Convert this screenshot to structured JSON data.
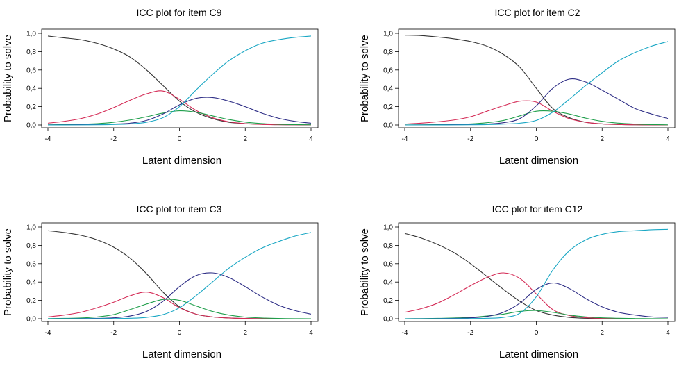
{
  "chart_data": [
    {
      "type": "line",
      "title": "ICC plot for item C9",
      "xlabel": "Latent dimension",
      "ylabel": "Probability to solve",
      "xlim": [
        -4,
        4
      ],
      "ylim": [
        0,
        1
      ],
      "xticks": [
        -4,
        -2,
        0,
        2,
        4
      ],
      "xtick_labels": [
        "-4",
        "-2",
        "0",
        "2",
        "4"
      ],
      "yticks": [
        0,
        0.2,
        0.4,
        0.6,
        0.8,
        1.0
      ],
      "ytick_labels": [
        "0,0",
        "0,2",
        "0,4",
        "0,6",
        "0,8",
        "1,0"
      ],
      "x": [
        -4,
        -3.5,
        -3,
        -2.5,
        -2,
        -1.5,
        -1,
        -0.5,
        0,
        0.5,
        1,
        1.5,
        2,
        2.5,
        3,
        3.5,
        4
      ],
      "series": [
        {
          "color": "#333333",
          "values": [
            0.97,
            0.95,
            0.93,
            0.89,
            0.83,
            0.74,
            0.6,
            0.43,
            0.26,
            0.14,
            0.07,
            0.03,
            0.015,
            0.007,
            0.003,
            0.002,
            0.001
          ]
        },
        {
          "color": "#d42a55",
          "values": [
            0.02,
            0.04,
            0.07,
            0.12,
            0.19,
            0.27,
            0.34,
            0.37,
            0.28,
            0.16,
            0.08,
            0.035,
            0.015,
            0.006,
            0.003,
            0.002,
            0.001
          ]
        },
        {
          "color": "#1e9e4a",
          "values": [
            0.002,
            0.004,
            0.008,
            0.015,
            0.03,
            0.055,
            0.09,
            0.13,
            0.155,
            0.14,
            0.1,
            0.06,
            0.032,
            0.016,
            0.008,
            0.004,
            0.002
          ]
        },
        {
          "color": "#2e2e86",
          "values": [
            0.001,
            0.002,
            0.003,
            0.005,
            0.01,
            0.02,
            0.05,
            0.12,
            0.22,
            0.29,
            0.3,
            0.26,
            0.2,
            0.13,
            0.075,
            0.04,
            0.02
          ]
        },
        {
          "color": "#1aa7c4",
          "values": [
            0.0,
            0.0,
            0.001,
            0.002,
            0.005,
            0.012,
            0.03,
            0.08,
            0.2,
            0.38,
            0.55,
            0.7,
            0.81,
            0.89,
            0.93,
            0.955,
            0.97
          ]
        }
      ]
    },
    {
      "type": "line",
      "title": "ICC plot for item C2",
      "xlabel": "Latent dimension",
      "ylabel": "Probability to solve",
      "xlim": [
        -4,
        4
      ],
      "ylim": [
        0,
        1
      ],
      "xticks": [
        -4,
        -2,
        0,
        2,
        4
      ],
      "xtick_labels": [
        "-4",
        "-2",
        "0",
        "2",
        "4"
      ],
      "yticks": [
        0,
        0.2,
        0.4,
        0.6,
        0.8,
        1.0
      ],
      "ytick_labels": [
        "0,0",
        "0,2",
        "0,4",
        "0,6",
        "0,8",
        "1,0"
      ],
      "x": [
        -4,
        -3.5,
        -3,
        -2.5,
        -2,
        -1.5,
        -1,
        -0.5,
        0,
        0.5,
        1,
        1.5,
        2,
        2.5,
        3,
        3.5,
        4
      ],
      "series": [
        {
          "color": "#333333",
          "values": [
            0.98,
            0.975,
            0.96,
            0.94,
            0.91,
            0.86,
            0.77,
            0.63,
            0.4,
            0.18,
            0.08,
            0.03,
            0.012,
            0.005,
            0.002,
            0.001,
            0.0
          ]
        },
        {
          "color": "#d42a55",
          "values": [
            0.01,
            0.02,
            0.035,
            0.055,
            0.09,
            0.15,
            0.21,
            0.26,
            0.25,
            0.15,
            0.07,
            0.03,
            0.012,
            0.005,
            0.002,
            0.001,
            0.0
          ]
        },
        {
          "color": "#1e9e4a",
          "values": [
            0.001,
            0.002,
            0.004,
            0.007,
            0.012,
            0.025,
            0.05,
            0.1,
            0.15,
            0.15,
            0.12,
            0.075,
            0.04,
            0.02,
            0.01,
            0.004,
            0.002
          ]
        },
        {
          "color": "#2e2e86",
          "values": [
            0.0,
            0.001,
            0.002,
            0.003,
            0.005,
            0.01,
            0.025,
            0.07,
            0.21,
            0.4,
            0.5,
            0.47,
            0.38,
            0.28,
            0.18,
            0.12,
            0.07
          ]
        },
        {
          "color": "#1aa7c4",
          "values": [
            0.0,
            0.0,
            0.0,
            0.001,
            0.002,
            0.004,
            0.01,
            0.02,
            0.05,
            0.14,
            0.28,
            0.43,
            0.57,
            0.7,
            0.79,
            0.86,
            0.91
          ]
        }
      ]
    },
    {
      "type": "line",
      "title": "ICC plot for item C3",
      "xlabel": "Latent dimension",
      "ylabel": "Probability to solve",
      "xlim": [
        -4,
        4
      ],
      "ylim": [
        0,
        1
      ],
      "xticks": [
        -4,
        -2,
        0,
        2,
        4
      ],
      "xtick_labels": [
        "-4",
        "-2",
        "0",
        "2",
        "4"
      ],
      "yticks": [
        0,
        0.2,
        0.4,
        0.6,
        0.8,
        1.0
      ],
      "ytick_labels": [
        "0,0",
        "0,2",
        "0,4",
        "0,6",
        "0,8",
        "1,0"
      ],
      "x": [
        -4,
        -3.5,
        -3,
        -2.5,
        -2,
        -1.5,
        -1,
        -0.5,
        0,
        0.5,
        1,
        1.5,
        2,
        2.5,
        3,
        3.5,
        4
      ],
      "series": [
        {
          "color": "#333333",
          "values": [
            0.96,
            0.94,
            0.91,
            0.86,
            0.78,
            0.66,
            0.49,
            0.29,
            0.13,
            0.05,
            0.02,
            0.008,
            0.003,
            0.001,
            0.0,
            0.0,
            0.0
          ]
        },
        {
          "color": "#d42a55",
          "values": [
            0.02,
            0.04,
            0.07,
            0.12,
            0.18,
            0.25,
            0.29,
            0.23,
            0.12,
            0.05,
            0.02,
            0.008,
            0.003,
            0.001,
            0.0,
            0.0,
            0.0
          ]
        },
        {
          "color": "#1e9e4a",
          "values": [
            0.002,
            0.004,
            0.008,
            0.02,
            0.045,
            0.1,
            0.16,
            0.21,
            0.2,
            0.14,
            0.08,
            0.04,
            0.018,
            0.008,
            0.003,
            0.001,
            0.0
          ]
        },
        {
          "color": "#2e2e86",
          "values": [
            0.0,
            0.001,
            0.002,
            0.004,
            0.01,
            0.03,
            0.08,
            0.19,
            0.35,
            0.47,
            0.5,
            0.45,
            0.35,
            0.24,
            0.15,
            0.09,
            0.05
          ]
        },
        {
          "color": "#1aa7c4",
          "values": [
            0.0,
            0.0,
            0.0,
            0.001,
            0.002,
            0.005,
            0.015,
            0.045,
            0.12,
            0.25,
            0.4,
            0.55,
            0.67,
            0.77,
            0.84,
            0.9,
            0.94
          ]
        }
      ]
    },
    {
      "type": "line",
      "title": "ICC plot for item C12",
      "xlabel": "Latent dimension",
      "ylabel": "Probability to solve",
      "xlim": [
        -4,
        4
      ],
      "ylim": [
        0,
        1
      ],
      "xticks": [
        -4,
        -2,
        0,
        2,
        4
      ],
      "xtick_labels": [
        "-4",
        "-2",
        "0",
        "2",
        "4"
      ],
      "yticks": [
        0,
        0.2,
        0.4,
        0.6,
        0.8,
        1.0
      ],
      "ytick_labels": [
        "0,0",
        "0,2",
        "0,4",
        "0,6",
        "0,8",
        "1,0"
      ],
      "x": [
        -4,
        -3.5,
        -3,
        -2.5,
        -2,
        -1.5,
        -1,
        -0.5,
        0,
        0.5,
        1,
        1.5,
        2,
        2.5,
        3,
        3.5,
        4
      ],
      "series": [
        {
          "color": "#333333",
          "values": [
            0.93,
            0.88,
            0.81,
            0.72,
            0.6,
            0.46,
            0.32,
            0.19,
            0.09,
            0.04,
            0.015,
            0.005,
            0.002,
            0.001,
            0.0,
            0.0,
            0.0
          ]
        },
        {
          "color": "#d42a55",
          "values": [
            0.07,
            0.11,
            0.17,
            0.26,
            0.36,
            0.45,
            0.5,
            0.44,
            0.27,
            0.1,
            0.035,
            0.012,
            0.004,
            0.001,
            0.0,
            0.0,
            0.0
          ]
        },
        {
          "color": "#1e9e4a",
          "values": [
            0.001,
            0.002,
            0.004,
            0.008,
            0.015,
            0.03,
            0.05,
            0.08,
            0.09,
            0.07,
            0.04,
            0.02,
            0.01,
            0.005,
            0.002,
            0.001,
            0.0
          ]
        },
        {
          "color": "#2e2e86",
          "values": [
            0.0,
            0.001,
            0.002,
            0.004,
            0.01,
            0.025,
            0.07,
            0.17,
            0.32,
            0.39,
            0.33,
            0.22,
            0.13,
            0.07,
            0.04,
            0.02,
            0.015
          ]
        },
        {
          "color": "#1aa7c4",
          "values": [
            0.0,
            0.0,
            0.0,
            0.001,
            0.002,
            0.005,
            0.015,
            0.06,
            0.24,
            0.53,
            0.74,
            0.86,
            0.92,
            0.95,
            0.96,
            0.97,
            0.975
          ]
        }
      ]
    }
  ]
}
